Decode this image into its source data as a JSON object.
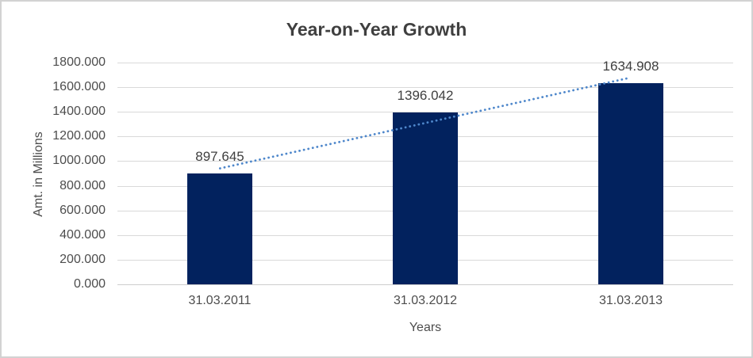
{
  "frame": {
    "background": "#ffffff",
    "border_color": "#d2d2d2"
  },
  "chart_data": {
    "type": "bar",
    "title": "Year-on-Year Growth",
    "categories": [
      "31.03.2011",
      "31.03.2012",
      "31.03.2013"
    ],
    "values": [
      897.645,
      1396.042,
      1634.908
    ],
    "data_labels": [
      "897.645",
      "1396.042",
      "1634.908"
    ],
    "xlabel": "Years",
    "ylabel": "Amt. in Millions",
    "ylim": [
      0,
      1800
    ],
    "y_tick_step": 200,
    "y_tick_labels": [
      "1800.000",
      "1600.000",
      "1400.000",
      "1200.000",
      "1000.000",
      "800.000",
      "600.000",
      "400.000",
      "200.000",
      "0.000"
    ],
    "grid": "horizontal-only",
    "legend_position": "none",
    "trendline": {
      "type": "linear",
      "style": "dotted"
    },
    "colors": {
      "bar": "#02225e",
      "trendline": "#4e87cb",
      "gridline": "#d9d9d9",
      "axis_line": "#cdcdcd",
      "title_text": "#3f3f3f",
      "tick_text": "#4d4d4d",
      "data_label_text": "#404040"
    }
  }
}
